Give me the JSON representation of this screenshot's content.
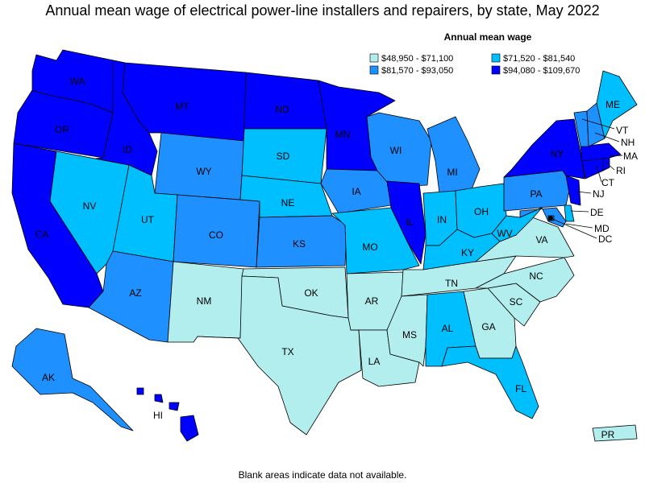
{
  "title": "Annual mean wage of electrical power-line installers and repairers, by state, May 2022",
  "footnote": "Blank areas indicate data not available.",
  "legend": {
    "title": "Annual mean wage",
    "bins": [
      {
        "label": "$48,950 - $71,100",
        "color": "#b2eeee"
      },
      {
        "label": "$71,520 - $81,540",
        "color": "#00bfff"
      },
      {
        "label": "$81,570 - $93,050",
        "color": "#1e90ff"
      },
      {
        "label": "$94,080 - $109,670",
        "color": "#0000ff"
      }
    ]
  },
  "states": [
    {
      "code": "WA",
      "bin": 3
    },
    {
      "code": "OR",
      "bin": 3
    },
    {
      "code": "CA",
      "bin": 3
    },
    {
      "code": "ID",
      "bin": 3
    },
    {
      "code": "MT",
      "bin": 3
    },
    {
      "code": "ND",
      "bin": 3
    },
    {
      "code": "MN",
      "bin": 3
    },
    {
      "code": "IL",
      "bin": 3
    },
    {
      "code": "NY",
      "bin": 3
    },
    {
      "code": "MA",
      "bin": 3
    },
    {
      "code": "CT",
      "bin": 3
    },
    {
      "code": "NJ",
      "bin": 3
    },
    {
      "code": "HI",
      "bin": 3
    },
    {
      "code": "RI",
      "bin": 3
    },
    {
      "code": "NV",
      "bin": 1
    },
    {
      "code": "UT",
      "bin": 1
    },
    {
      "code": "SD",
      "bin": 1
    },
    {
      "code": "NE",
      "bin": 1
    },
    {
      "code": "MO",
      "bin": 1
    },
    {
      "code": "IN",
      "bin": 1
    },
    {
      "code": "OH",
      "bin": 1
    },
    {
      "code": "KY",
      "bin": 1
    },
    {
      "code": "WV",
      "bin": 1
    },
    {
      "code": "AL",
      "bin": 1
    },
    {
      "code": "FL",
      "bin": 1
    },
    {
      "code": "ME",
      "bin": 1
    },
    {
      "code": "DE",
      "bin": 1
    },
    {
      "code": "WY",
      "bin": 2
    },
    {
      "code": "CO",
      "bin": 2
    },
    {
      "code": "AZ",
      "bin": 2
    },
    {
      "code": "KS",
      "bin": 2
    },
    {
      "code": "IA",
      "bin": 2
    },
    {
      "code": "WI",
      "bin": 2
    },
    {
      "code": "MI",
      "bin": 2
    },
    {
      "code": "PA",
      "bin": 2
    },
    {
      "code": "AK",
      "bin": 2
    },
    {
      "code": "VT",
      "bin": 2
    },
    {
      "code": "NH",
      "bin": 2
    },
    {
      "code": "MD",
      "bin": 2
    },
    {
      "code": "DC",
      "bin": 2
    },
    {
      "code": "NM",
      "bin": 0
    },
    {
      "code": "OK",
      "bin": 0
    },
    {
      "code": "TX",
      "bin": 0
    },
    {
      "code": "AR",
      "bin": 0
    },
    {
      "code": "LA",
      "bin": 0
    },
    {
      "code": "MS",
      "bin": 0
    },
    {
      "code": "TN",
      "bin": 0
    },
    {
      "code": "GA",
      "bin": 0
    },
    {
      "code": "SC",
      "bin": 0
    },
    {
      "code": "NC",
      "bin": 0
    },
    {
      "code": "VA",
      "bin": 0
    },
    {
      "code": "PR",
      "bin": 0
    }
  ]
}
